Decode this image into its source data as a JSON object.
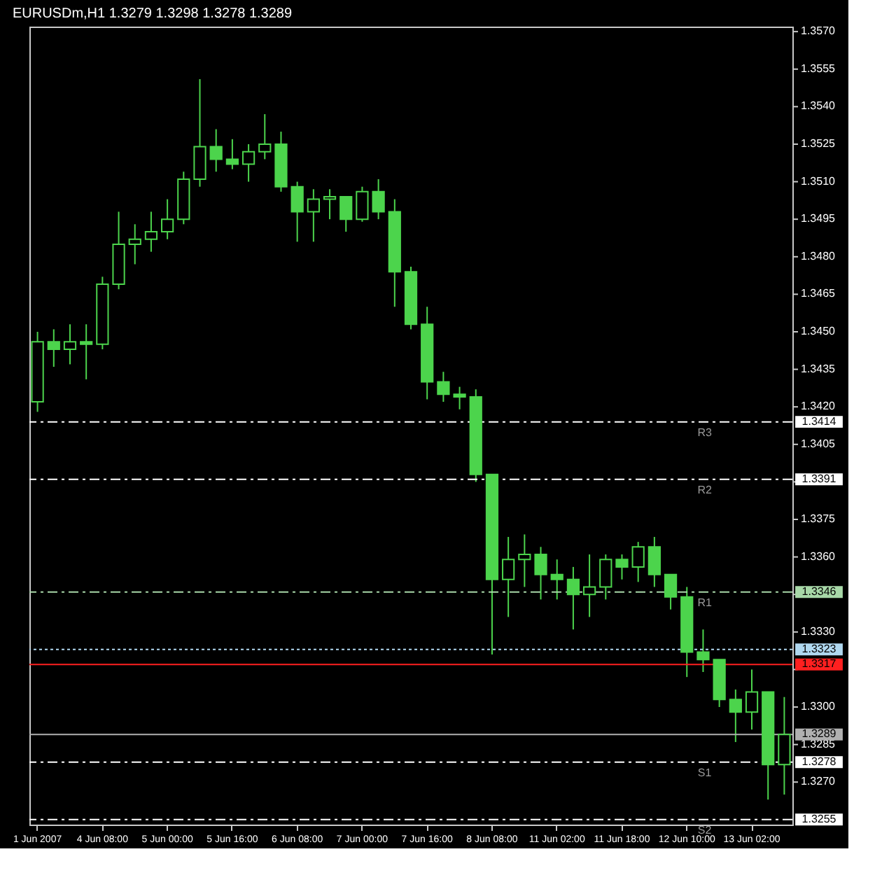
{
  "chart_data": {
    "type": "candlestick",
    "title": "EURUSDm,H1 1.3279 1.3298 1.3278 1.3289",
    "color": "#4cd44c",
    "categories": [
      "1 Jun 2007",
      null,
      null,
      null,
      "4 Jun 08:00",
      null,
      null,
      null,
      "5 Jun 00:00",
      null,
      null,
      null,
      "5 Jun 16:00",
      null,
      null,
      null,
      "6 Jun 08:00",
      null,
      null,
      null,
      "7 Jun 00:00",
      null,
      null,
      null,
      "7 Jun 16:00",
      null,
      null,
      null,
      "8 Jun 08:00",
      null,
      null,
      null,
      "11 Jun 02:00",
      null,
      null,
      null,
      "11 Jun 18:00",
      null,
      null,
      null,
      "12 Jun 10:00",
      null,
      null,
      null,
      "13 Jun 02:00",
      null,
      null
    ],
    "ohlc": [
      [
        1.3422,
        1.345,
        1.3418,
        1.3446
      ],
      [
        1.3446,
        1.3451,
        1.3436,
        1.3443
      ],
      [
        1.3443,
        1.3453,
        1.3437,
        1.3446
      ],
      [
        1.3446,
        1.3453,
        1.3431,
        1.3445
      ],
      [
        1.3445,
        1.3472,
        1.3443,
        1.3469
      ],
      [
        1.3469,
        1.3498,
        1.3467,
        1.3485
      ],
      [
        1.3485,
        1.3493,
        1.3477,
        1.3487
      ],
      [
        1.3487,
        1.3498,
        1.3482,
        1.349
      ],
      [
        1.349,
        1.3503,
        1.3487,
        1.3495
      ],
      [
        1.3495,
        1.3514,
        1.3493,
        1.3511
      ],
      [
        1.3511,
        1.3551,
        1.3508,
        1.3524
      ],
      [
        1.3524,
        1.3531,
        1.3514,
        1.3519
      ],
      [
        1.3519,
        1.3527,
        1.3515,
        1.3517
      ],
      [
        1.3517,
        1.3525,
        1.351,
        1.3522
      ],
      [
        1.3522,
        1.3537,
        1.3519,
        1.3525
      ],
      [
        1.3525,
        1.353,
        1.3506,
        1.3508
      ],
      [
        1.3508,
        1.351,
        1.3486,
        1.3498
      ],
      [
        1.3498,
        1.3507,
        1.3486,
        1.3503
      ],
      [
        1.3503,
        1.3507,
        1.3495,
        1.3504
      ],
      [
        1.3504,
        1.3504,
        1.349,
        1.3495
      ],
      [
        1.3495,
        1.3508,
        1.3494,
        1.3506
      ],
      [
        1.3506,
        1.3511,
        1.3495,
        1.3498
      ],
      [
        1.3498,
        1.3503,
        1.346,
        1.3474
      ],
      [
        1.3474,
        1.3476,
        1.3451,
        1.3453
      ],
      [
        1.3453,
        1.346,
        1.3423,
        1.343
      ],
      [
        1.343,
        1.3434,
        1.3422,
        1.3425
      ],
      [
        1.3425,
        1.3428,
        1.3419,
        1.3424
      ],
      [
        1.3424,
        1.3427,
        1.339,
        1.3393
      ],
      [
        1.3393,
        1.3393,
        1.3321,
        1.3351
      ],
      [
        1.3351,
        1.3368,
        1.3336,
        1.3359
      ],
      [
        1.3359,
        1.3369,
        1.3348,
        1.3361
      ],
      [
        1.3361,
        1.3364,
        1.3343,
        1.3353
      ],
      [
        1.3353,
        1.3359,
        1.3343,
        1.3351
      ],
      [
        1.3351,
        1.3356,
        1.3331,
        1.3345
      ],
      [
        1.3345,
        1.3361,
        1.3336,
        1.3348
      ],
      [
        1.3348,
        1.3361,
        1.3343,
        1.3359
      ],
      [
        1.3359,
        1.3361,
        1.3351,
        1.3356
      ],
      [
        1.3356,
        1.3366,
        1.335,
        1.3364
      ],
      [
        1.3364,
        1.3368,
        1.3348,
        1.3353
      ],
      [
        1.3353,
        1.3353,
        1.3339,
        1.3344
      ],
      [
        1.3344,
        1.3348,
        1.3312,
        1.3322
      ],
      [
        1.3322,
        1.3331,
        1.3314,
        1.3319
      ],
      [
        1.3319,
        1.3319,
        1.33,
        1.3303
      ],
      [
        1.3303,
        1.3307,
        1.3286,
        1.3298
      ],
      [
        1.3298,
        1.3315,
        1.3291,
        1.3306
      ],
      [
        1.3306,
        1.3306,
        1.3263,
        1.3277
      ],
      [
        1.3277,
        1.3304,
        1.3265,
        1.3289
      ]
    ],
    "ylim": [
      1.3253,
      1.3572
    ],
    "yticks": [
      {
        "value": 1.357,
        "label": "1.3570"
      },
      {
        "value": 1.3555,
        "label": "1.3555"
      },
      {
        "value": 1.354,
        "label": "1.3540"
      },
      {
        "value": 1.3525,
        "label": "1.3525"
      },
      {
        "value": 1.351,
        "label": "1.3510"
      },
      {
        "value": 1.3495,
        "label": "1.3495"
      },
      {
        "value": 1.348,
        "label": "1.3480"
      },
      {
        "value": 1.3465,
        "label": "1.3465"
      },
      {
        "value": 1.345,
        "label": "1.3450"
      },
      {
        "value": 1.3435,
        "label": "1.3435"
      },
      {
        "value": 1.342,
        "label": "1.3420"
      },
      {
        "value": 1.3405,
        "label": "1.3405"
      },
      {
        "value": 1.339,
        "label": null
      },
      {
        "value": 1.3375,
        "label": "1.3375"
      },
      {
        "value": 1.336,
        "label": "1.3360"
      },
      {
        "value": 1.3345,
        "label": null
      },
      {
        "value": 1.333,
        "label": "1.3330"
      },
      {
        "value": 1.3315,
        "label": null
      },
      {
        "value": 1.33,
        "label": "1.3300"
      },
      {
        "value": 1.3285,
        "label": "1.3285"
      },
      {
        "value": 1.327,
        "label": "1.3270"
      }
    ],
    "grid": false,
    "ref_lines": [
      {
        "axis": "y",
        "value": 1.3414,
        "label": "R3",
        "color": "#ffffff",
        "line_style": "dashed"
      },
      {
        "axis": "y",
        "value": 1.3391,
        "label": "R2",
        "color": "#ffffff",
        "line_style": "dashed"
      },
      {
        "axis": "y",
        "value": 1.3346,
        "label": "R1",
        "color": "#a8d8a8",
        "line_style": "dashed"
      },
      {
        "axis": "y",
        "value": 1.3323,
        "color": "#b0d8f0",
        "line_style": "dotted"
      },
      {
        "axis": "y",
        "value": 1.3317,
        "color": "#ff2020",
        "line_style": "solid"
      },
      {
        "axis": "y",
        "value": 1.3289,
        "color": "#b0b0b0",
        "line_style": "solid"
      },
      {
        "axis": "y",
        "value": 1.3278,
        "label": "S1",
        "color": "#ffffff",
        "line_style": "dashed"
      },
      {
        "axis": "y",
        "value": 1.3255,
        "label": "S2",
        "color": "#ffffff",
        "line_style": "dashed"
      }
    ],
    "annotations": [
      "1.3414",
      "1.3391",
      "1.3346",
      "1.3323",
      "1.3317",
      "1.3289",
      "1.3278",
      "1.3255"
    ]
  }
}
